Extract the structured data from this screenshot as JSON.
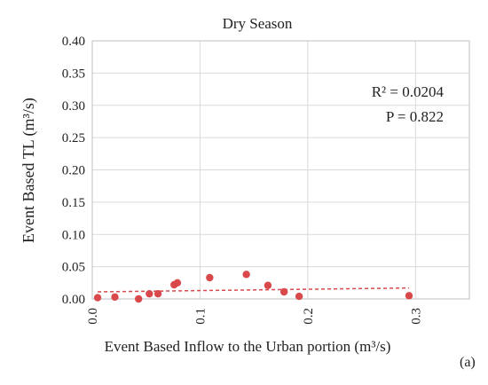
{
  "chart_data": {
    "type": "scatter",
    "title": "Dry Season",
    "xlabel": "Event Based Inflow to the Urban portion (m³/s)",
    "ylabel": "Event Based TL (m³/s)",
    "xlim": [
      0.0,
      0.35
    ],
    "ylim": [
      0.0,
      0.4
    ],
    "x_ticks": [
      0.0,
      0.1,
      0.2,
      0.3
    ],
    "x_tick_labels": [
      "0.0",
      "0.1",
      "0.2",
      "0.3"
    ],
    "y_ticks": [
      0.0,
      0.05,
      0.1,
      0.15,
      0.2,
      0.25,
      0.3,
      0.35,
      0.4
    ],
    "y_tick_labels": [
      "0.00",
      "0.05",
      "0.10",
      "0.15",
      "0.20",
      "0.25",
      "0.30",
      "0.35",
      "0.40"
    ],
    "grid": true,
    "marker_color": "#d9484a",
    "trend_color": "#d9484a",
    "points": [
      {
        "x": 0.005,
        "y": 0.002
      },
      {
        "x": 0.021,
        "y": 0.003
      },
      {
        "x": 0.043,
        "y": 0.0
      },
      {
        "x": 0.053,
        "y": 0.008
      },
      {
        "x": 0.061,
        "y": 0.008
      },
      {
        "x": 0.076,
        "y": 0.022
      },
      {
        "x": 0.079,
        "y": 0.025
      },
      {
        "x": 0.109,
        "y": 0.033
      },
      {
        "x": 0.143,
        "y": 0.038
      },
      {
        "x": 0.163,
        "y": 0.021
      },
      {
        "x": 0.178,
        "y": 0.011
      },
      {
        "x": 0.192,
        "y": 0.004
      },
      {
        "x": 0.294,
        "y": 0.005
      }
    ],
    "trendline": {
      "x": [
        0.005,
        0.294
      ],
      "y": [
        0.011,
        0.017
      ]
    },
    "annotations": [
      "R² = 0.0204",
      "P = 0.822"
    ],
    "panel_label": "(a)"
  }
}
